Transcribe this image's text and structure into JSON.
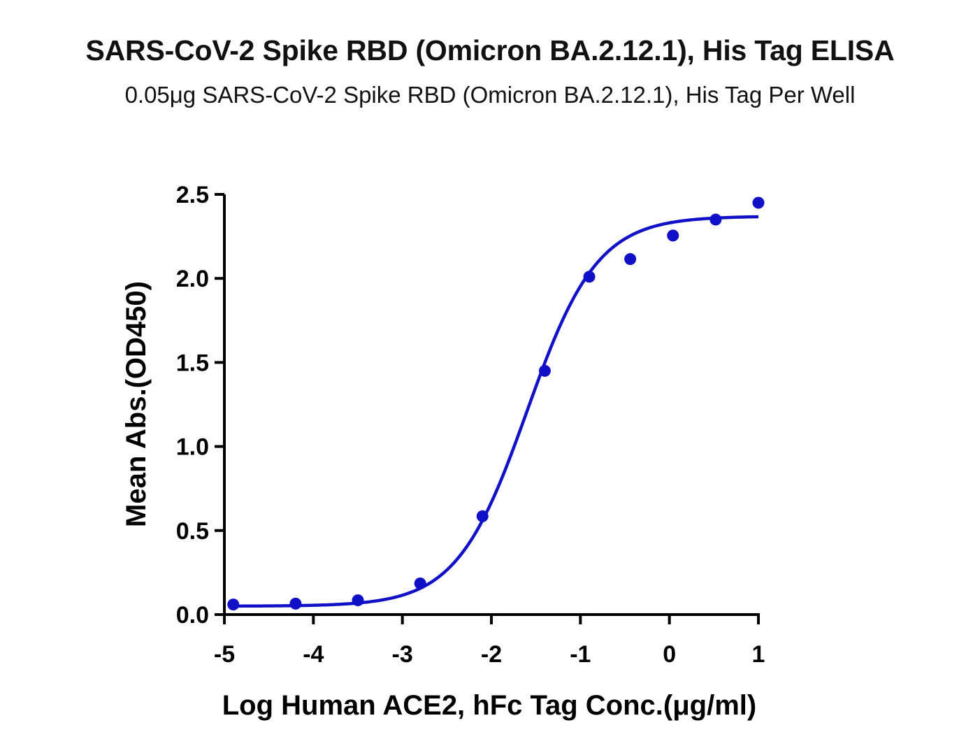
{
  "chart_data": {
    "type": "scatter",
    "title": "SARS-CoV-2 Spike RBD (Omicron BA.2.12.1), His Tag ELISA",
    "subtitle": "0.05μg SARS-CoV-2 Spike RBD (Omicron BA.2.12.1), His Tag Per Well",
    "xlabel": "Log Human ACE2, hFc Tag Conc.(μg/ml)",
    "ylabel": "Mean Abs.(OD450)",
    "xlim": [
      -5,
      1
    ],
    "ylim": [
      0,
      2.5
    ],
    "x_ticks": [
      -5,
      -4,
      -3,
      -2,
      -1,
      0,
      1
    ],
    "x_tick_labels": [
      "-5",
      "-4",
      "-3",
      "-2",
      "-1",
      "0",
      "1"
    ],
    "y_ticks": [
      0,
      0.5,
      1.0,
      1.5,
      2.0,
      2.5
    ],
    "y_tick_labels": [
      "0.0",
      "0.5",
      "1.0",
      "1.5",
      "2.0",
      "2.5"
    ],
    "grid": false,
    "legend": "none",
    "color": "#1010c8",
    "series": [
      {
        "x": [
          -4.9,
          -4.2,
          -3.5,
          -2.8,
          -2.1,
          -1.4,
          -0.9,
          -0.44,
          0.04,
          0.52,
          1.0
        ],
        "y": [
          0.06,
          0.065,
          0.085,
          0.185,
          0.585,
          1.45,
          2.01,
          2.115,
          2.255,
          2.35,
          2.45
        ]
      }
    ],
    "fit": {
      "model": "4PL",
      "bottom": 0.05,
      "top": 2.37,
      "logEC50": -1.6,
      "hill": 1.1,
      "x_range": [
        -4.9,
        1.0
      ]
    }
  }
}
